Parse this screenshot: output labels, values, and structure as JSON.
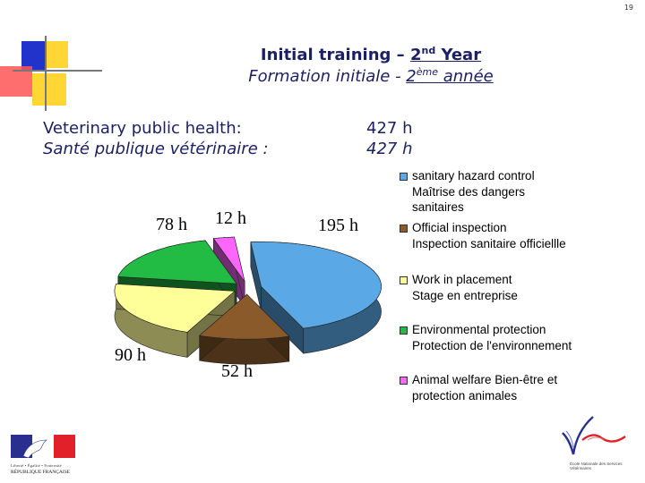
{
  "page_number": "19",
  "title": {
    "en_prefix": "Initial training – ",
    "en_ordinal": "2",
    "en_sup": "nd",
    "en_suffix": " Year",
    "fr_prefix": "Formation initiale - ",
    "fr_ordinal": "2",
    "fr_sup": "ème",
    "fr_suffix": " année"
  },
  "subject": {
    "en_label": "Veterinary public health:",
    "fr_label": "Santé publique vétérinaire :",
    "en_hours": "427 h",
    "fr_hours": "427 h"
  },
  "chart_data": {
    "type": "pie",
    "slices": [
      {
        "label": "sanitary hazard control\nMaîtrise des dangers sanitaires",
        "value": 195,
        "value_label": "195 h",
        "color": "#5aa9e6"
      },
      {
        "label": "Official inspection\nInspection sanitaire officiellle",
        "value": 52,
        "value_label": "52 h",
        "color": "#8a5a2b"
      },
      {
        "label": "Work in placement\nStage en entreprise",
        "value": 90,
        "value_label": "90 h",
        "color": "#ffff99"
      },
      {
        "label": "Environmental protection\nProtection de l'environnement",
        "value": 78,
        "value_label": "78 h",
        "color": "#22bb44"
      },
      {
        "label": "Animal welfare Bien-être et protection animales",
        "value": 12,
        "value_label": "12 h",
        "color": "#ff66ff"
      }
    ]
  },
  "logos": {
    "republic_motto": "Liberté • Égalité • Fraternité",
    "republic_name": "République Française",
    "school_text": "École Nationale des Services Vétérinaires"
  },
  "colors": {
    "title": "#1b1f63",
    "deco_blue": "#2233cc",
    "deco_yellow": "#ffd633",
    "deco_red": "#ff4d4d"
  }
}
